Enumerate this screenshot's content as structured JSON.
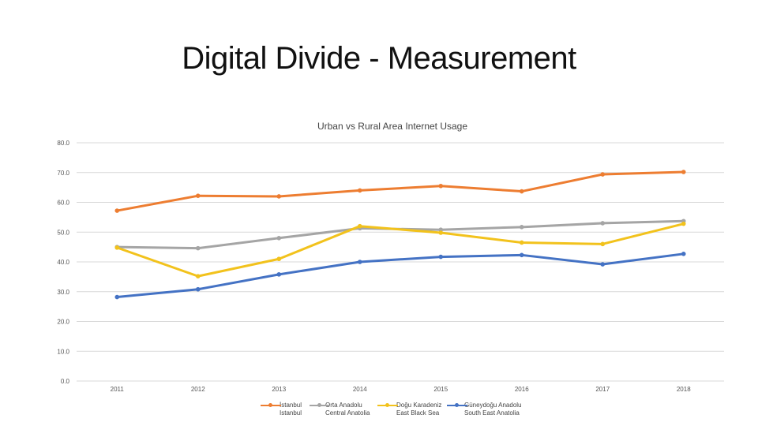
{
  "slide": {
    "title": "Digital Divide - Measurement"
  },
  "chart_data": {
    "type": "line",
    "title": "Urban vs Rural Area Internet Usage",
    "xlabel": "",
    "ylabel": "",
    "categories": [
      "2011",
      "2012",
      "2013",
      "2014",
      "2015",
      "2016",
      "2017",
      "2018"
    ],
    "ylim": [
      0,
      80
    ],
    "yticks": [
      "0.0",
      "10.0",
      "20.0",
      "30.0",
      "40.0",
      "50.0",
      "60.0",
      "70.0",
      "80.0"
    ],
    "grid": true,
    "legend_position": "bottom",
    "series": [
      {
        "name": "İstanbul",
        "name2": "Istanbul",
        "color": "#ED7D31",
        "values": [
          57.2,
          62.2,
          62.0,
          64.0,
          65.5,
          63.7,
          69.4,
          70.2
        ]
      },
      {
        "name": "Orta Anadolu",
        "name2": "Central Anatolia",
        "color": "#A5A5A5",
        "values": [
          45.0,
          44.6,
          48.0,
          51.3,
          50.8,
          51.7,
          53.0,
          53.7
        ]
      },
      {
        "name": "Doğu Karadeniz",
        "name2": "East Black Sea",
        "color": "#F2C21C",
        "values": [
          44.8,
          35.2,
          41.0,
          52.0,
          49.8,
          46.5,
          46.0,
          52.8
        ]
      },
      {
        "name": "Güneydoğu Anadolu",
        "name2": "South East Anatolia",
        "color": "#4472C4",
        "values": [
          28.2,
          30.8,
          35.8,
          40.0,
          41.7,
          42.3,
          39.2,
          42.7
        ]
      }
    ]
  }
}
